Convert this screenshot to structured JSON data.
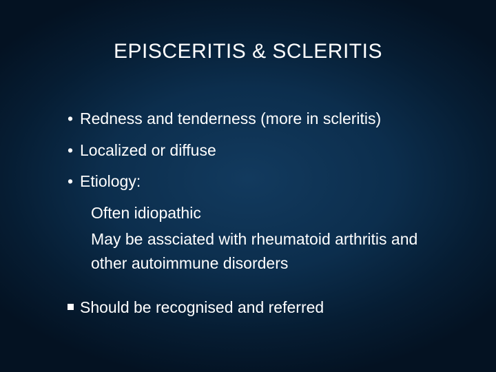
{
  "slide": {
    "title": "EPISCERITIS & SCLERITIS",
    "background_colors": {
      "center": "#123a5e",
      "mid": "#0c2e4d",
      "edge": "#041222"
    },
    "text_color": "#ffffff",
    "title_fontsize": 30,
    "body_fontsize": 23,
    "bullets": [
      {
        "marker": "•",
        "text": "Redness and tenderness (more in scleritis)"
      },
      {
        "marker": "•",
        "text": "Localized or diffuse"
      },
      {
        "marker": "•",
        "text": "Etiology:"
      }
    ],
    "sublines": [
      "Often idiopathic",
      "May be assciated with rheumatoid arthritis and other autoimmune disorders"
    ],
    "footer_bullet": {
      "marker": "■",
      "text": "Should be recognised and referred"
    }
  }
}
